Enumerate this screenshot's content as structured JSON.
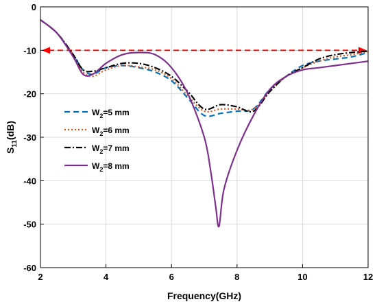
{
  "chart_data": {
    "type": "line",
    "title": "",
    "xlabel": "Frequency(GHz)",
    "ylabel": "S",
    "ylabel_sub": "11",
    "ylabel_suffix": "(dB)",
    "xlim": [
      2,
      12
    ],
    "ylim": [
      -60,
      0
    ],
    "xticks": [
      2,
      4,
      6,
      8,
      10,
      12
    ],
    "yticks": [
      0,
      -10,
      -20,
      -30,
      -40,
      -50,
      -60
    ],
    "grid": true,
    "legend_position": "left-center",
    "reference_line": {
      "y": -10,
      "x_range": [
        2,
        12
      ],
      "color": "#ff0000",
      "style": "dashed-double-arrow"
    },
    "series": [
      {
        "name": "W",
        "name_sub": "2",
        "name_suffix": "=5 mm",
        "color": "#0072bd",
        "dash": "8,5",
        "x": [
          2.0,
          2.5,
          3.0,
          3.3,
          3.6,
          4.0,
          4.5,
          5.0,
          5.5,
          6.0,
          6.5,
          7.0,
          7.5,
          8.0,
          8.5,
          9.0,
          9.5,
          10.0,
          10.5,
          11.0,
          11.5,
          12.0
        ],
        "y": [
          -3,
          -6,
          -11,
          -14.5,
          -15.5,
          -14,
          -13.5,
          -14,
          -15,
          -17,
          -21,
          -25,
          -24.5,
          -24,
          -23.5,
          -19,
          -16,
          -13.5,
          -12.5,
          -12,
          -11.5,
          -10.5
        ]
      },
      {
        "name": "W",
        "name_sub": "2",
        "name_suffix": "=6 mm",
        "color": "#d95319",
        "dash": "2,3",
        "x": [
          2.0,
          2.5,
          3.0,
          3.3,
          3.6,
          4.0,
          4.5,
          5.0,
          5.5,
          6.0,
          6.5,
          7.0,
          7.5,
          8.0,
          8.5,
          9.0,
          9.5,
          10.0,
          10.5,
          11.0,
          11.5,
          12.0
        ],
        "y": [
          -3,
          -6,
          -11,
          -15,
          -16,
          -14.5,
          -13.5,
          -13.8,
          -14.5,
          -16.5,
          -20.5,
          -24,
          -23.5,
          -23.5,
          -23.5,
          -19.5,
          -16,
          -14,
          -12.5,
          -11.5,
          -11,
          -10.3
        ]
      },
      {
        "name": "W",
        "name_sub": "2",
        "name_suffix": "=7 mm",
        "color": "#000000",
        "dash": "9,3,2,3",
        "x": [
          2.0,
          2.5,
          3.0,
          3.3,
          3.6,
          4.0,
          4.5,
          5.0,
          5.5,
          6.0,
          6.5,
          7.0,
          7.5,
          8.0,
          8.5,
          9.0,
          9.5,
          10.0,
          10.5,
          11.0,
          11.5,
          12.0
        ],
        "y": [
          -3,
          -6,
          -11,
          -14.5,
          -14.8,
          -14,
          -13,
          -13,
          -14,
          -16,
          -19.5,
          -23.5,
          -22.5,
          -23,
          -24,
          -19.5,
          -16,
          -14,
          -12,
          -11,
          -10.5,
          -10.2
        ]
      },
      {
        "name": "W",
        "name_sub": "2",
        "name_suffix": "=8 mm",
        "color": "#7e2f8e",
        "dash": "",
        "x": [
          2.0,
          2.5,
          3.0,
          3.3,
          3.6,
          4.0,
          4.5,
          5.0,
          5.5,
          6.0,
          6.5,
          7.0,
          7.2,
          7.35,
          7.45,
          7.6,
          8.0,
          8.5,
          9.0,
          9.5,
          10.0,
          10.5,
          11.0,
          11.5,
          12.0
        ],
        "y": [
          -3,
          -6,
          -11.5,
          -15.5,
          -15.5,
          -13,
          -11,
          -10.5,
          -11,
          -14,
          -20,
          -30,
          -38,
          -46,
          -50.5,
          -42,
          -33,
          -25,
          -19,
          -16,
          -14.5,
          -14,
          -13.5,
          -13,
          -12.5
        ]
      }
    ]
  }
}
